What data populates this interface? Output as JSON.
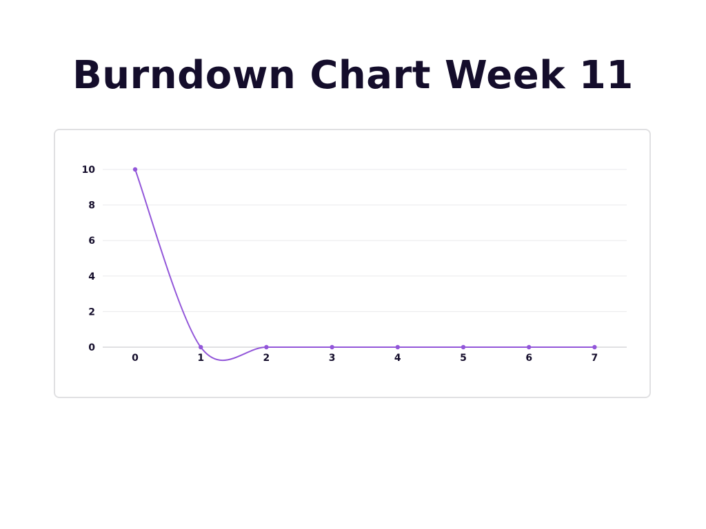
{
  "page": {
    "title": "Burndown Chart Week 11"
  },
  "chart_data": {
    "type": "line",
    "title": "",
    "xlabel": "",
    "ylabel": "",
    "x": [
      0,
      1,
      2,
      3,
      4,
      5,
      6,
      7
    ],
    "series": [
      {
        "values": [
          10,
          0,
          0,
          0,
          0,
          0,
          0,
          0
        ],
        "color": "#9256d9"
      }
    ],
    "ylim": [
      0,
      10
    ],
    "yticks": [
      0,
      2,
      4,
      6,
      8,
      10
    ],
    "xticks": [
      0,
      1,
      2,
      3,
      4,
      5,
      6,
      7
    ],
    "grid": true,
    "smooth": true,
    "legend": "none"
  }
}
